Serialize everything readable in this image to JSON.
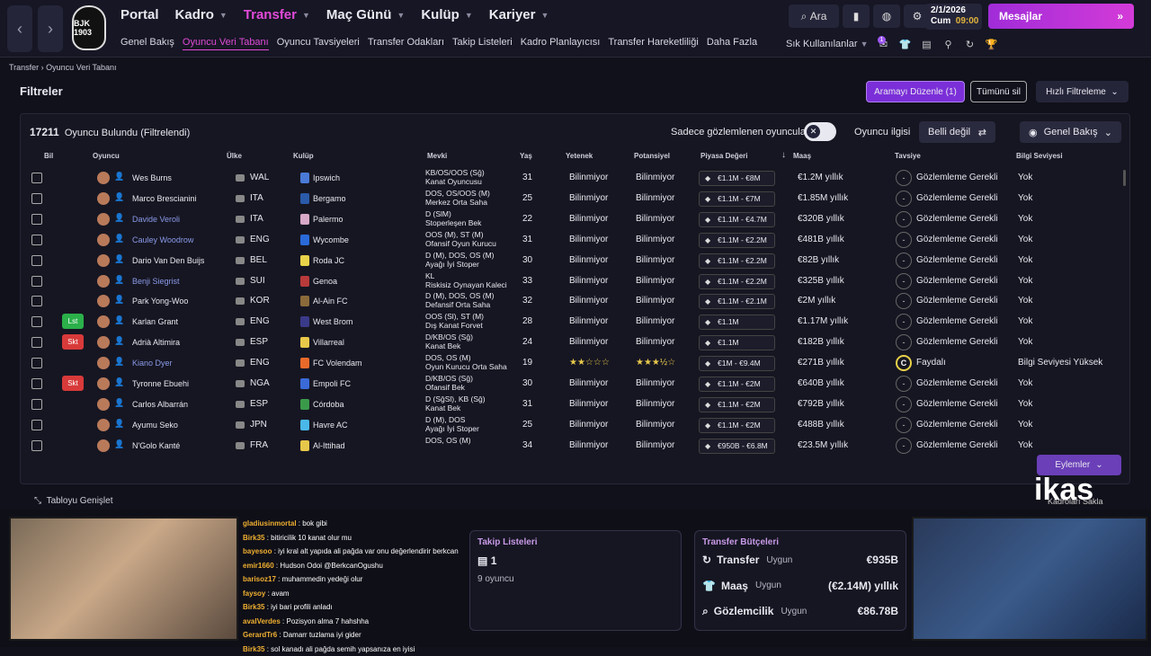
{
  "nav": {
    "back": "‹",
    "forward": "›",
    "crest_text": "BJK 1903",
    "main_menu": [
      "Portal",
      "Kadro",
      "Transfer",
      "Maç Günü",
      "Kulüp",
      "Kariyer"
    ],
    "active_main": "Transfer",
    "sub_menu": [
      "Genel Bakış",
      "Oyuncu Veri Tabanı",
      "Oyuncu Tavsiyeleri",
      "Transfer Odakları",
      "Takip Listeleri",
      "Kadro Planlayıcısı",
      "Transfer Hareketliliği",
      "Daha Fazla"
    ],
    "active_sub": "Oyuncu Veri Tabanı",
    "search_label": "Ara",
    "date": "2/1/2026",
    "day": "Cum",
    "time": "09:00",
    "messages_label": "Mesajlar",
    "favorites_label": "Sık Kullanılanlar",
    "notif_badge": "1"
  },
  "breadcrumb": "Transfer  ›  Oyuncu Veri Tabanı",
  "filters": {
    "title": "Filtreler",
    "edit_search": "Aramayı Düzenle (1)",
    "clear_all": "Tümünü sil",
    "quick_filter": "Hızlı Filtreleme"
  },
  "table": {
    "count_number": "17211",
    "count_text": "Oyuncu Bulundu (Filtrelendi)",
    "only_scouted": "Sadece gözlemlenen oyuncular",
    "interest_label": "Oyuncu ilgisi",
    "interest_value": "Belli değil",
    "view_value": "Genel Bakış",
    "columns": [
      "Bil",
      "Oyuncu",
      "Ülke",
      "Kulüp",
      "Mevki",
      "Yaş",
      "Yetenek",
      "Potansiyel",
      "Piyasa Değeri",
      "Maaş",
      "Tavsiye",
      "Bilgi Seviyesi"
    ],
    "sort_arrow": "↓",
    "rows": [
      {
        "tag": "",
        "name": "Wes Burns",
        "nat": "WAL",
        "club": "Ipswich",
        "pos": "KB/OS/OOS (Sğ)",
        "role": "Kanat Oyuncusu",
        "age": "31",
        "ability": "Bilinmiyor",
        "potential": "Bilinmiyor",
        "value": "€1.1M - €8M",
        "wage": "€1.2M yıllık",
        "rec": "-",
        "rec_text": "Gözlemleme Gerekli",
        "level": "Yok"
      },
      {
        "tag": "",
        "name": "Marco Brescianini",
        "nat": "ITA",
        "club": "Bergamo",
        "pos": "DOS, OS/OOS (M)",
        "role": "Merkez Orta Saha",
        "age": "25",
        "ability": "Bilinmiyor",
        "potential": "Bilinmiyor",
        "value": "€1.1M - €7M",
        "wage": "€1.85M yıllık",
        "rec": "-",
        "rec_text": "Gözlemleme Gerekli",
        "level": "Yok"
      },
      {
        "tag": "",
        "name": "Davide Veroli",
        "nat": "ITA",
        "club": "Palermo",
        "pos": "D (SlM)",
        "role": "Stoperleşen Bek",
        "age": "22",
        "ability": "Bilinmiyor",
        "potential": "Bilinmiyor",
        "value": "€1.1M - €4.7M",
        "wage": "€320B yıllık",
        "rec": "-",
        "rec_text": "Gözlemleme Gerekli",
        "level": "Yok"
      },
      {
        "tag": "",
        "name": "Cauley Woodrow",
        "nat": "ENG",
        "club": "Wycombe",
        "pos": "OOS (M), ST (M)",
        "role": "Ofansif Oyun Kurucu",
        "age": "31",
        "ability": "Bilinmiyor",
        "potential": "Bilinmiyor",
        "value": "€1.1M - €2.2M",
        "wage": "€481B yıllık",
        "rec": "-",
        "rec_text": "Gözlemleme Gerekli",
        "level": "Yok"
      },
      {
        "tag": "",
        "name": "Dario Van Den Buijs",
        "nat": "BEL",
        "club": "Roda JC",
        "pos": "D (M), DOS, OS (M)",
        "role": "Ayağı İyi Stoper",
        "age": "30",
        "ability": "Bilinmiyor",
        "potential": "Bilinmiyor",
        "value": "€1.1M - €2.2M",
        "wage": "€82B yıllık",
        "rec": "-",
        "rec_text": "Gözlemleme Gerekli",
        "level": "Yok"
      },
      {
        "tag": "",
        "name": "Benji Siegrist",
        "nat": "SUI",
        "club": "Genoa",
        "pos": "KL",
        "role": "Riskisiz Oynayan Kaleci",
        "age": "33",
        "ability": "Bilinmiyor",
        "potential": "Bilinmiyor",
        "value": "€1.1M - €2.2M",
        "wage": "€325B yıllık",
        "rec": "-",
        "rec_text": "Gözlemleme Gerekli",
        "level": "Yok"
      },
      {
        "tag": "",
        "name": "Park Yong-Woo",
        "nat": "KOR",
        "club": "Al-Ain FC",
        "pos": "D (M), DOS, OS (M)",
        "role": "Defansif Orta Saha",
        "age": "32",
        "ability": "Bilinmiyor",
        "potential": "Bilinmiyor",
        "value": "€1.1M - €2.1M",
        "wage": "€2M yıllık",
        "rec": "-",
        "rec_text": "Gözlemleme Gerekli",
        "level": "Yok"
      },
      {
        "tag": "Lst",
        "name": "Karlan Grant",
        "nat": "ENG",
        "club": "West Brom",
        "pos": "OOS (Sl), ST (M)",
        "role": "Dış Kanat Forvet",
        "age": "28",
        "ability": "Bilinmiyor",
        "potential": "Bilinmiyor",
        "value": "€1.1M",
        "wage": "€1.17M yıllık",
        "rec": "-",
        "rec_text": "Gözlemleme Gerekli",
        "level": "Yok"
      },
      {
        "tag": "Skt",
        "name": "Adrià Altimira",
        "nat": "ESP",
        "club": "Villarreal",
        "pos": "D/KB/OS (Sğ)",
        "role": "Kanat Bek",
        "age": "24",
        "ability": "Bilinmiyor",
        "potential": "Bilinmiyor",
        "value": "€1.1M",
        "wage": "€182B yıllık",
        "rec": "-",
        "rec_text": "Gözlemleme Gerekli",
        "level": "Yok"
      },
      {
        "tag": "",
        "name": "Kiano Dyer",
        "nat": "ENG",
        "club": "FC Volendam",
        "pos": "DOS, OS (M)",
        "role": "Oyun Kurucu Orta Saha",
        "age": "19",
        "ability": "★★☆☆☆",
        "potential": "★★★½☆",
        "value": "€1M - €9.4M",
        "wage": "€271B yıllık",
        "rec": "C",
        "rec_text": "Faydalı",
        "level": "Bilgi Seviyesi Yüksek"
      },
      {
        "tag": "Skt",
        "name": "Tyronne Ebuehi",
        "nat": "NGA",
        "club": "Empoli FC",
        "pos": "D/KB/OS (Sğ)",
        "role": "Ofansif Bek",
        "age": "30",
        "ability": "Bilinmiyor",
        "potential": "Bilinmiyor",
        "value": "€1.1M - €2M",
        "wage": "€640B yıllık",
        "rec": "-",
        "rec_text": "Gözlemleme Gerekli",
        "level": "Yok"
      },
      {
        "tag": "",
        "name": "Carlos Albarrán",
        "nat": "ESP",
        "club": "Córdoba",
        "pos": "D (SğSl), KB (Sğ)",
        "role": "Kanat Bek",
        "age": "31",
        "ability": "Bilinmiyor",
        "potential": "Bilinmiyor",
        "value": "€1.1M - €2M",
        "wage": "€792B yıllık",
        "rec": "-",
        "rec_text": "Gözlemleme Gerekli",
        "level": "Yok"
      },
      {
        "tag": "",
        "name": "Ayumu Seko",
        "nat": "JPN",
        "club": "Havre AC",
        "pos": "D (M), DOS",
        "role": "Ayağı İyi Stoper",
        "age": "25",
        "ability": "Bilinmiyor",
        "potential": "Bilinmiyor",
        "value": "€1.1M - €2M",
        "wage": "€488B yıllık",
        "rec": "-",
        "rec_text": "Gözlemleme Gerekli",
        "level": "Yok"
      },
      {
        "tag": "",
        "name": "N'Golo Kanté",
        "nat": "FRA",
        "club": "Al-Ittihad",
        "pos": "DOS, OS (M)",
        "role": "",
        "age": "34",
        "ability": "Bilinmiyor",
        "potential": "Bilinmiyor",
        "value": "€950B - €6.8M",
        "wage": "€23.5M yıllık",
        "rec": "-",
        "rec_text": "Gözlemleme Gerekli",
        "level": "Yok"
      }
    ]
  },
  "actions_label": "Eylemler",
  "expand_label": "Tabloyu Genişlet",
  "shortlist": {
    "title": "Takip Listeleri",
    "count": "1",
    "sub": "9 oyuncu"
  },
  "budget": {
    "title": "Transfer Bütçeleri",
    "rows": [
      {
        "label": "Transfer",
        "status": "Uygun",
        "amount": "€935B"
      },
      {
        "label": "Maaş",
        "status": "Uygun",
        "amount": "(€2.14M) yıllık"
      },
      {
        "label": "Gözlemcilik",
        "status": "Uygun",
        "amount": "€86.78B"
      }
    ]
  },
  "brand": "ikas",
  "kadro_label": "Kadroları Sakla",
  "chat": [
    {
      "u": "gladiusinmortal",
      "m": "bok gibi"
    },
    {
      "u": "Birk35",
      "m": "bitiricilik 10 kanat olur mu"
    },
    {
      "u": "bayesoo",
      "m": "iyi kral alt yapıda ali pağda var onu değerlendirir berkcan"
    },
    {
      "u": "emir1660",
      "m": "Hudson Odoi @BerkcanOgushu"
    },
    {
      "u": "barisoz17",
      "m": "muhammedin yedeği olur"
    },
    {
      "u": "faysoy",
      "m": "avam"
    },
    {
      "u": "Birk35",
      "m": "iyi bari profili anladı"
    },
    {
      "u": "avalVerdes",
      "m": "Pozisyon alma 7 hahshha"
    },
    {
      "u": "GerardTr6",
      "m": "Damarr tuzlama iyi gider"
    },
    {
      "u": "Birk35",
      "m": "sol kanadı ali pağda semih yapsanıza en iyisi"
    }
  ]
}
